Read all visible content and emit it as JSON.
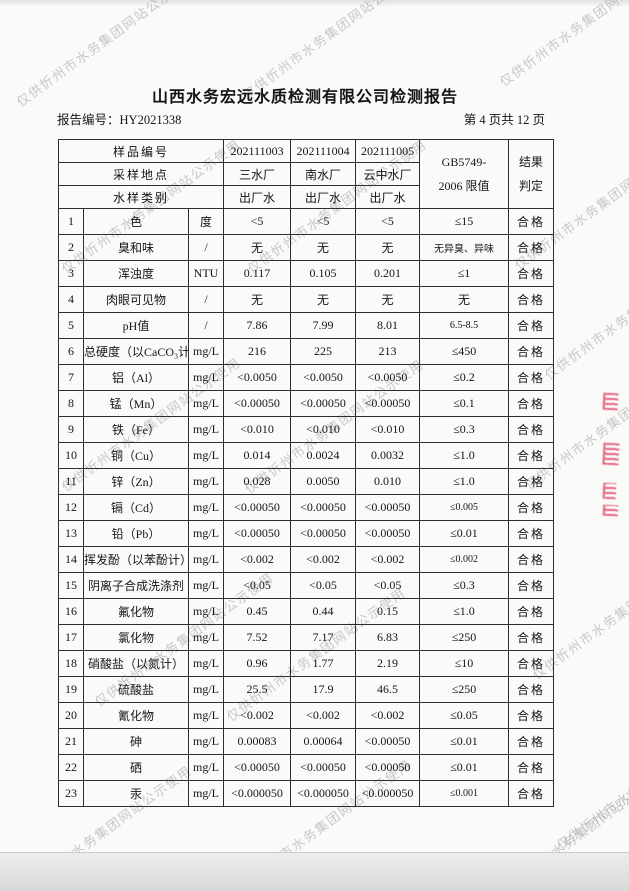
{
  "page": {
    "title": "山西水务宏远水质检测有限公司检测报告",
    "report_no_label": "报告编号：",
    "report_no": "HY2021338",
    "page_info": "第 4 页共 12 页"
  },
  "watermark": {
    "text": "仅供忻州市水务集团网站公示使用",
    "color": "rgba(138,138,136,0.45)"
  },
  "seal": {
    "color": "#e0486a"
  },
  "table": {
    "header": {
      "sample_no_label": "样品编号",
      "location_label": "采样地点",
      "type_label": "水样类别",
      "sample_ids": [
        "202111003",
        "202111004",
        "202111005"
      ],
      "locations": [
        "三水厂",
        "南水厂",
        "云中水厂"
      ],
      "types": [
        "出厂水",
        "出厂水",
        "出厂水"
      ],
      "limit_line1": "GB5749-",
      "limit_line2": "2006 限值",
      "result_line1": "结果",
      "result_line2": "判定"
    },
    "rows": [
      {
        "no": "1",
        "name": "色",
        "unit": "度",
        "values": [
          "<5",
          "<5",
          "<5"
        ],
        "limit": "≤15",
        "result": "合格"
      },
      {
        "no": "2",
        "name": "臭和味",
        "unit": "/",
        "values": [
          "无",
          "无",
          "无"
        ],
        "limit": "无异臭、异味",
        "result": "合格"
      },
      {
        "no": "3",
        "name": "浑浊度",
        "unit": "NTU",
        "values": [
          "0.117",
          "0.105",
          "0.201"
        ],
        "limit": "≤1",
        "result": "合格"
      },
      {
        "no": "4",
        "name": "肉眼可见物",
        "unit": "/",
        "values": [
          "无",
          "无",
          "无"
        ],
        "limit": "无",
        "result": "合格"
      },
      {
        "no": "5",
        "name": "pH值",
        "unit": "/",
        "values": [
          "7.86",
          "7.99",
          "8.01"
        ],
        "limit": "6.5-8.5",
        "result": "合格"
      },
      {
        "no": "6",
        "name": "总硬度（以CaCO₃计）",
        "unit": "mg/L",
        "values": [
          "216",
          "225",
          "213"
        ],
        "limit": "≤450",
        "result": "合格"
      },
      {
        "no": "7",
        "name": "铝（Al）",
        "unit": "mg/L",
        "values": [
          "<0.0050",
          "<0.0050",
          "<0.0050"
        ],
        "limit": "≤0.2",
        "result": "合格"
      },
      {
        "no": "8",
        "name": "锰（Mn）",
        "unit": "mg/L",
        "values": [
          "<0.00050",
          "<0.00050",
          "<0.00050"
        ],
        "limit": "≤0.1",
        "result": "合格"
      },
      {
        "no": "9",
        "name": "铁（Fe）",
        "unit": "mg/L",
        "values": [
          "<0.010",
          "<0.010",
          "<0.010"
        ],
        "limit": "≤0.3",
        "result": "合格"
      },
      {
        "no": "10",
        "name": "铜（Cu）",
        "unit": "mg/L",
        "values": [
          "0.014",
          "0.0024",
          "0.0032"
        ],
        "limit": "≤1.0",
        "result": "合格"
      },
      {
        "no": "11",
        "name": "锌（Zn）",
        "unit": "mg/L",
        "values": [
          "0.028",
          "0.0050",
          "0.010"
        ],
        "limit": "≤1.0",
        "result": "合格"
      },
      {
        "no": "12",
        "name": "镉（Cd）",
        "unit": "mg/L",
        "values": [
          "<0.00050",
          "<0.00050",
          "<0.00050"
        ],
        "limit": "≤0.005",
        "result": "合格"
      },
      {
        "no": "13",
        "name": "铅（Pb）",
        "unit": "mg/L",
        "values": [
          "<0.00050",
          "<0.00050",
          "<0.00050"
        ],
        "limit": "≤0.01",
        "result": "合格"
      },
      {
        "no": "14",
        "name": "挥发酚（以苯酚计）",
        "unit": "mg/L",
        "values": [
          "<0.002",
          "<0.002",
          "<0.002"
        ],
        "limit": "≤0.002",
        "result": "合格"
      },
      {
        "no": "15",
        "name": "阴离子合成洗涤剂",
        "unit": "mg/L",
        "values": [
          "<0.05",
          "<0.05",
          "<0.05"
        ],
        "limit": "≤0.3",
        "result": "合格"
      },
      {
        "no": "16",
        "name": "氟化物",
        "unit": "mg/L",
        "values": [
          "0.45",
          "0.44",
          "0.15"
        ],
        "limit": "≤1.0",
        "result": "合格"
      },
      {
        "no": "17",
        "name": "氯化物",
        "unit": "mg/L",
        "values": [
          "7.52",
          "7.17",
          "6.83"
        ],
        "limit": "≤250",
        "result": "合格"
      },
      {
        "no": "18",
        "name": "硝酸盐（以氮计）",
        "unit": "mg/L",
        "values": [
          "0.96",
          "1.77",
          "2.19"
        ],
        "limit": "≤10",
        "result": "合格"
      },
      {
        "no": "19",
        "name": "硫酸盐",
        "unit": "mg/L",
        "values": [
          "25.5",
          "17.9",
          "46.5"
        ],
        "limit": "≤250",
        "result": "合格"
      },
      {
        "no": "20",
        "name": "氰化物",
        "unit": "mg/L",
        "values": [
          "<0.002",
          "<0.002",
          "<0.002"
        ],
        "limit": "≤0.05",
        "result": "合格"
      },
      {
        "no": "21",
        "name": "砷",
        "unit": "mg/L",
        "values": [
          "0.00083",
          "0.00064",
          "<0.00050"
        ],
        "limit": "≤0.01",
        "result": "合格"
      },
      {
        "no": "22",
        "name": "硒",
        "unit": "mg/L",
        "values": [
          "<0.00050",
          "<0.00050",
          "<0.00050"
        ],
        "limit": "≤0.01",
        "result": "合格"
      },
      {
        "no": "23",
        "name": "汞",
        "unit": "mg/L",
        "values": [
          "<0.000050",
          "<0.000050",
          "<0.000050"
        ],
        "limit": "≤0.001",
        "result": "合格"
      }
    ]
  }
}
